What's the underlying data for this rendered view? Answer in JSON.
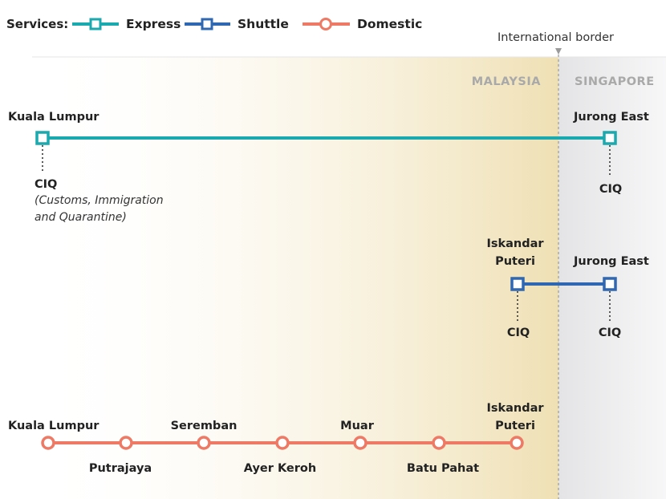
{
  "colors": {
    "express": "#1aa9ae",
    "shuttle": "#2f67b2",
    "domestic": "#ee7a66",
    "malaysia_band": "#efe0b6",
    "singapore_band": "#e9e9ea",
    "border": "#9a9a9a",
    "country_label": "#a9a9a9"
  },
  "legend": {
    "title": "Services:",
    "items": [
      {
        "label": "Express",
        "icon": "square-marker-icon"
      },
      {
        "label": "Shuttle",
        "icon": "square-marker-icon"
      },
      {
        "label": "Domestic",
        "icon": "circle-marker-icon"
      }
    ]
  },
  "border": {
    "label": "International border",
    "left_country": "MALAYSIA",
    "right_country": "SINGAPORE"
  },
  "express": {
    "from": "Kuala Lumpur",
    "to": "Jurong East",
    "from_ciq": "CIQ",
    "from_ciq_note_1": "(Customs, Immigration",
    "from_ciq_note_2": "and Quarantine)",
    "to_ciq": "CIQ"
  },
  "shuttle": {
    "from_1": "Iskandar",
    "from_2": "Puteri",
    "to": "Jurong East",
    "from_ciq": "CIQ",
    "to_ciq": "CIQ"
  },
  "domestic": {
    "stations": [
      "Kuala Lumpur",
      "Putrajaya",
      "Seremban",
      "Ayer Keroh",
      "Muar",
      "Batu Pahat"
    ],
    "last_1": "Iskandar",
    "last_2": "Puteri"
  }
}
